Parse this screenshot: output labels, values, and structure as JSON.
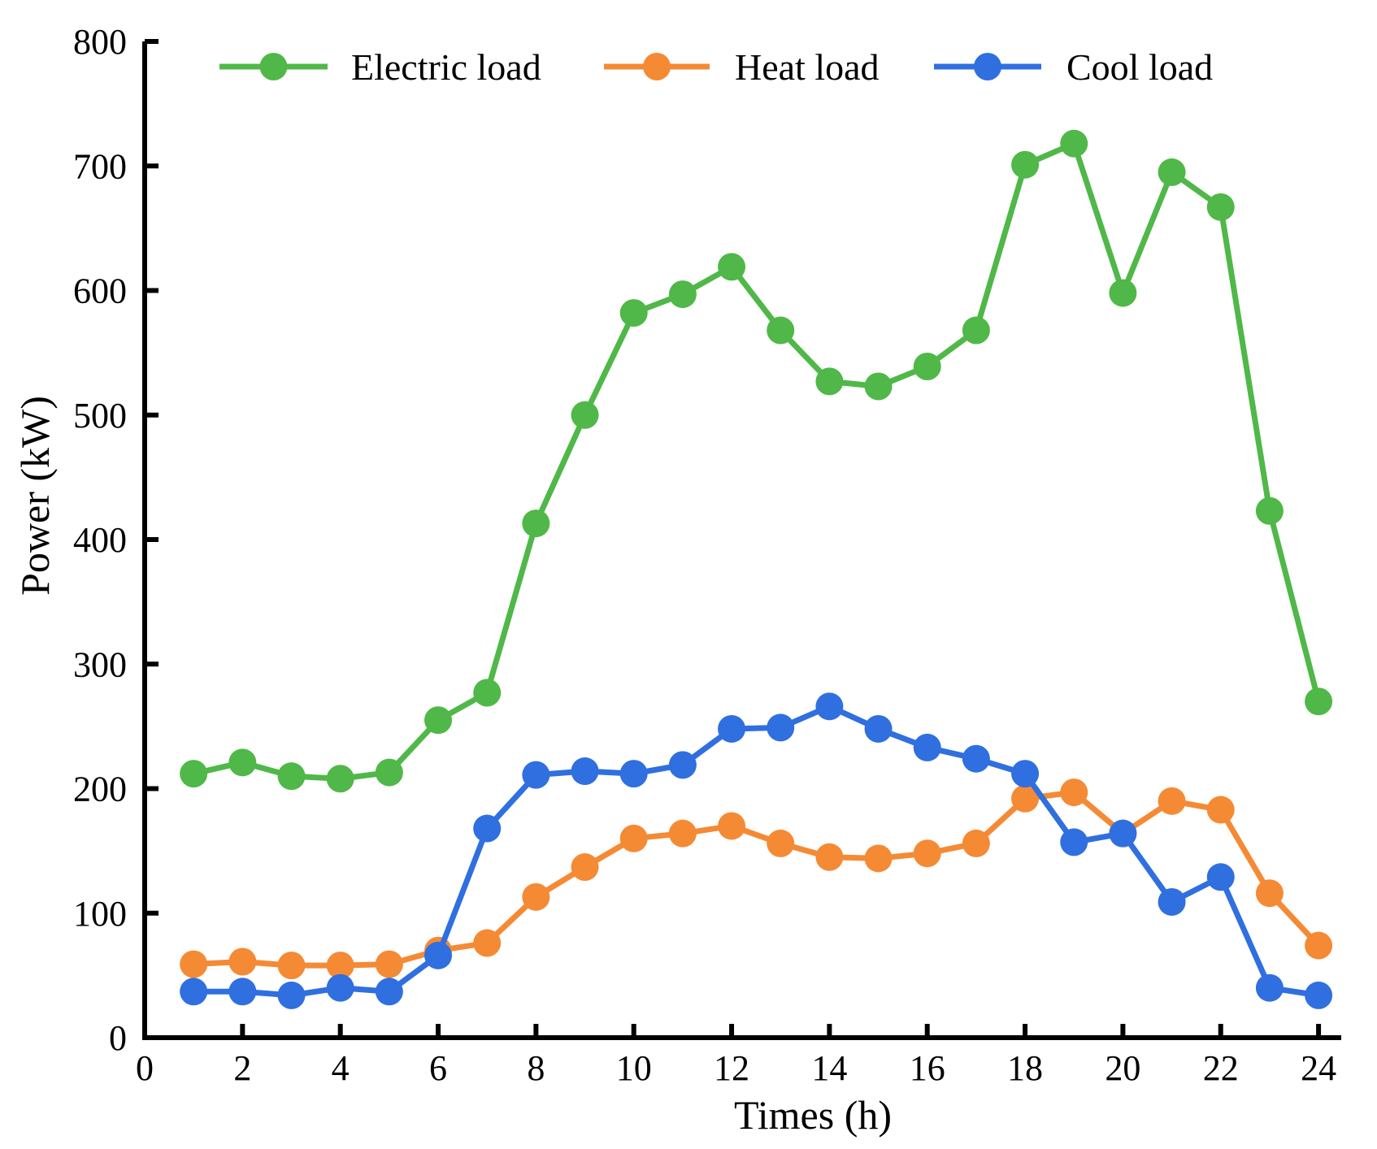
{
  "chart_data": {
    "type": "line",
    "title": "",
    "xlabel": "Times (h)",
    "ylabel": "Power (kW)",
    "xlim": [
      0,
      25.5
    ],
    "ylim": [
      0,
      800
    ],
    "x_ticks": [
      0,
      2,
      4,
      6,
      8,
      10,
      12,
      14,
      16,
      18,
      20,
      22,
      24
    ],
    "y_ticks": [
      0,
      100,
      200,
      300,
      400,
      500,
      600,
      700,
      800
    ],
    "grid": false,
    "legend_position": "top",
    "x": [
      1,
      2,
      3,
      4,
      5,
      6,
      7,
      8,
      9,
      10,
      11,
      12,
      13,
      14,
      15,
      16,
      17,
      18,
      19,
      20,
      21,
      22,
      23,
      24
    ],
    "series": [
      {
        "name": "Electric load",
        "color": "#4fb848",
        "values": [
          212,
          221,
          210,
          208,
          213,
          255,
          277,
          413,
          500,
          582,
          597,
          619,
          568,
          527,
          523,
          539,
          568,
          701,
          718,
          598,
          695,
          667,
          423,
          270
        ]
      },
      {
        "name": "Heat load",
        "color": "#f58a35",
        "values": [
          59,
          61,
          58,
          58,
          59,
          70,
          76,
          113,
          137,
          160,
          164,
          170,
          156,
          145,
          144,
          148,
          156,
          192,
          197,
          164,
          190,
          183,
          116,
          74
        ]
      },
      {
        "name": "Cool load",
        "color": "#2f6fe0",
        "values": [
          37,
          37,
          34,
          40,
          37,
          66,
          168,
          211,
          214,
          212,
          219,
          248,
          249,
          266,
          248,
          233,
          224,
          212,
          157,
          164,
          109,
          129,
          40,
          34
        ]
      }
    ]
  }
}
